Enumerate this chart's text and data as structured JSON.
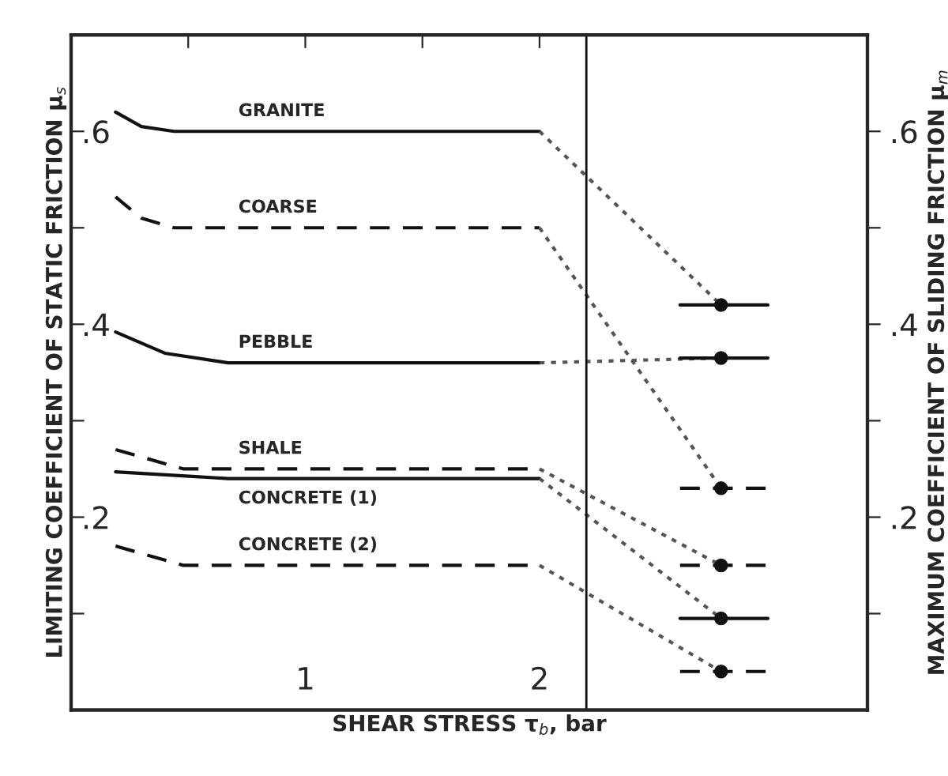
{
  "chart_data": {
    "type": "line",
    "xlabel": "SHEAR STRESS τ$_{b}$, bar",
    "ylabel": "LIMITING COEFFICIENT OF STATIC FRICTION μ$_{s}$",
    "y2label": "MAXIMUM COEFFICIENT OF SLIDING FRICTION μ$_{m}$",
    "xlim": [
      0,
      3.4
    ],
    "xticks": [
      {
        "value": 0.5,
        "label": null
      },
      1,
      {
        "value": 1.5,
        "label": null
      },
      2
    ],
    "ylim": [
      0,
      0.7
    ],
    "yticks": [
      {
        "value": 0.1,
        "label": null
      },
      {
        "value": 0.2,
        "label": ".2"
      },
      {
        "value": 0.3,
        "label": null
      },
      {
        "value": 0.4,
        "label": ".4"
      },
      {
        "value": 0.5,
        "label": null
      },
      {
        "value": 0.6,
        "label": ".6"
      }
    ],
    "y2lim": [
      0,
      0.7
    ],
    "y2ticks": [
      {
        "value": 0.1,
        "label": null
      },
      {
        "value": 0.2,
        "label": ".2"
      },
      {
        "value": 0.3,
        "label": null
      },
      {
        "value": 0.4,
        "label": ".4"
      },
      {
        "value": 0.5,
        "label": null
      },
      {
        "value": 0.6,
        "label": ".6"
      }
    ],
    "grid": false,
    "ref_lines": [
      {
        "axis": "x",
        "value": 2.2,
        "label": null,
        "color": "#111111"
      }
    ],
    "series": [
      {
        "name": "GRANITE",
        "color": "#111111",
        "line_style": "solid",
        "x": [
          0.19,
          0.3,
          0.44,
          2.0
        ],
        "values": [
          0.62,
          0.605,
          0.6,
          0.6
        ]
      },
      {
        "name": "COARSE",
        "color": "#111111",
        "line_style": "dashed",
        "x": [
          0.19,
          0.3,
          0.44,
          2.0
        ],
        "values": [
          0.532,
          0.51,
          0.5,
          0.5
        ]
      },
      {
        "name": "PEBBLE",
        "color": "#111111",
        "line_style": "solid",
        "x": [
          0.19,
          0.4,
          0.67,
          2.0
        ],
        "values": [
          0.392,
          0.37,
          0.36,
          0.36
        ]
      },
      {
        "name": "SHALE",
        "color": "#111111",
        "line_style": "dashed",
        "x": [
          0.19,
          0.48,
          2.0
        ],
        "values": [
          0.27,
          0.25,
          0.25
        ]
      },
      {
        "name": "CONCRETE (1)",
        "color": "#111111",
        "line_style": "solid",
        "x": [
          0.19,
          0.67,
          2.0
        ],
        "values": [
          0.247,
          0.24,
          0.24
        ]
      },
      {
        "name": "CONCRETE (2)",
        "color": "#111111",
        "line_style": "dashed",
        "x": [
          0.19,
          0.48,
          2.0
        ],
        "values": [
          0.17,
          0.15,
          0.15
        ]
      },
      {
        "color": "#555555",
        "line_style": "dotted",
        "x": [
          2.0,
          2.775
        ],
        "values": [
          0.6,
          0.42
        ]
      },
      {
        "color": "#555555",
        "line_style": "dotted",
        "x": [
          2.0,
          2.775
        ],
        "values": [
          0.5,
          0.23
        ]
      },
      {
        "color": "#555555",
        "line_style": "dotted",
        "x": [
          2.0,
          2.775
        ],
        "values": [
          0.36,
          0.365
        ]
      },
      {
        "color": "#555555",
        "line_style": "dotted",
        "x": [
          2.0,
          2.775
        ],
        "values": [
          0.25,
          0.15
        ]
      },
      {
        "color": "#555555",
        "line_style": "dotted",
        "x": [
          2.0,
          2.775
        ],
        "values": [
          0.24,
          0.095
        ]
      },
      {
        "color": "#555555",
        "line_style": "dotted",
        "x": [
          2.0,
          2.775
        ],
        "values": [
          0.15,
          0.04
        ]
      },
      {
        "type": "scatter",
        "color": "#111111",
        "marker": "circle",
        "line_style": "solid",
        "x": [
          2.775
        ],
        "values": [
          0.42
        ],
        "xerrors": [
          [
            2.6,
            2.975
          ]
        ]
      },
      {
        "type": "scatter",
        "color": "#111111",
        "marker": "circle",
        "line_style": "dashed",
        "x": [
          2.775
        ],
        "values": [
          0.23
        ],
        "xerrors": [
          [
            2.6,
            2.975
          ]
        ]
      },
      {
        "type": "scatter",
        "color": "#111111",
        "marker": "circle",
        "line_style": "solid",
        "x": [
          2.775
        ],
        "values": [
          0.365
        ],
        "xerrors": [
          [
            2.6,
            2.975
          ]
        ]
      },
      {
        "type": "scatter",
        "color": "#111111",
        "marker": "circle",
        "line_style": "dashed",
        "x": [
          2.775
        ],
        "values": [
          0.15
        ],
        "xerrors": [
          [
            2.6,
            2.975
          ]
        ]
      },
      {
        "type": "scatter",
        "color": "#111111",
        "marker": "circle",
        "line_style": "solid",
        "x": [
          2.775
        ],
        "values": [
          0.095
        ],
        "xerrors": [
          [
            2.6,
            2.975
          ]
        ]
      },
      {
        "type": "scatter",
        "color": "#111111",
        "marker": "circle",
        "line_style": "dashed",
        "x": [
          2.775
        ],
        "values": [
          0.04
        ],
        "xerrors": [
          [
            2.6,
            2.975
          ]
        ]
      }
    ]
  }
}
